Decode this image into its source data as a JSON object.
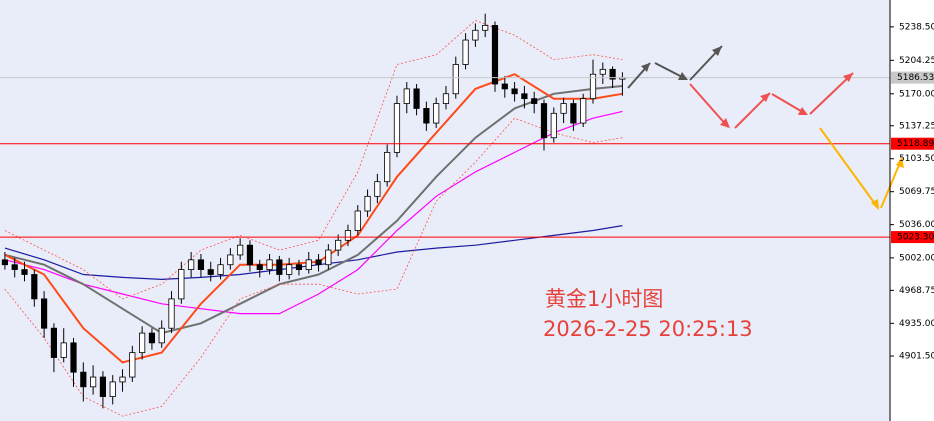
{
  "chart_data": {
    "type": "candlestick",
    "title": "黄金1小时图",
    "subtitle": "2026-2-25 20:25:13",
    "xlim": [
      -0.5,
      90.3
    ],
    "ylim": [
      4835,
      5266
    ],
    "yticks": [
      {
        "value": 5238.5,
        "label": "5238.50"
      },
      5204.25,
      {
        "value": 5170,
        "label": "5170.00"
      },
      5137.25,
      {
        "value": 5103.5,
        "label": "5103.50"
      },
      5069.75,
      {
        "value": 5036,
        "label": "5036.00"
      },
      {
        "value": 5002,
        "label": "5002.00"
      },
      4968.75,
      {
        "value": 4935,
        "label": "4935.00"
      },
      {
        "value": 4901.5,
        "label": "4901.50"
      }
    ],
    "open": [
      5000,
      4995,
      4990,
      4985,
      4960,
      4930,
      4900,
      4915,
      4885,
      4870,
      4880,
      4860,
      4875,
      4880,
      4905,
      4925,
      4915,
      4930,
      4960,
      4990,
      5000,
      4990,
      4985,
      4995,
      5005,
      5015,
      4995,
      4990,
      5000,
      4985,
      4995,
      4990,
      5000,
      4995,
      5010,
      5020,
      5030,
      5050,
      5065,
      5080,
      5110,
      5160,
      5175,
      5155,
      5140,
      5160,
      5170,
      5200,
      5225,
      5235,
      5240,
      5180,
      5175,
      5170,
      5165,
      5160,
      5125,
      5150,
      5160,
      5140,
      5165,
      5190,
      5195,
      5185
    ],
    "high": [
      5008,
      5002,
      4998,
      4990,
      4968,
      4935,
      4930,
      4920,
      4895,
      4892,
      4886,
      4882,
      4888,
      4912,
      4932,
      4930,
      4938,
      4968,
      4998,
      5008,
      5006,
      4998,
      5002,
      5012,
      5022,
      5020,
      5000,
      5006,
      5004,
      5002,
      5000,
      5008,
      5006,
      5016,
      5026,
      5036,
      5056,
      5072,
      5088,
      5118,
      5168,
      5182,
      5180,
      5162,
      5166,
      5178,
      5208,
      5232,
      5242,
      5252,
      5244,
      5188,
      5182,
      5178,
      5172,
      5164,
      5156,
      5166,
      5164,
      5170,
      5205,
      5202,
      5198,
      5192
    ],
    "low": [
      4990,
      4982,
      4978,
      4952,
      4920,
      4885,
      4895,
      4870,
      4855,
      4862,
      4848,
      4852,
      4865,
      4875,
      4898,
      4908,
      4910,
      4925,
      4955,
      4982,
      4982,
      4978,
      4980,
      4990,
      5000,
      4988,
      4982,
      4985,
      4978,
      4980,
      4984,
      4986,
      4988,
      4990,
      5004,
      5014,
      5025,
      5044,
      5058,
      5075,
      5105,
      5150,
      5148,
      5132,
      5135,
      5154,
      5165,
      5195,
      5218,
      5228,
      5172,
      5166,
      5162,
      5155,
      5150,
      5112,
      5120,
      5140,
      5132,
      5136,
      5160,
      5180,
      5176,
      5168
    ],
    "close": [
      4995,
      4990,
      4985,
      4960,
      4930,
      4900,
      4915,
      4885,
      4870,
      4880,
      4860,
      4875,
      4880,
      4905,
      4925,
      4915,
      4930,
      4960,
      4990,
      5000,
      4990,
      4985,
      4995,
      5005,
      5015,
      4995,
      4990,
      5000,
      4985,
      4995,
      4990,
      5000,
      4995,
      5010,
      5020,
      5030,
      5050,
      5065,
      5080,
      5110,
      5160,
      5175,
      5155,
      5140,
      5160,
      5170,
      5200,
      5225,
      5235,
      5240,
      5180,
      5175,
      5170,
      5165,
      5160,
      5125,
      5150,
      5160,
      5140,
      5165,
      5190,
      5195,
      5185,
      5186.53
    ],
    "up_color": "#ffffff",
    "down_color": "#000000",
    "line_x": [
      0,
      4,
      8,
      12,
      16,
      20,
      24,
      28,
      32,
      36,
      40,
      44,
      48,
      52,
      56,
      60,
      63
    ],
    "lines": [
      {
        "color": "#1c1ca0",
        "dash": false,
        "values": [
          5012,
          5000,
          4985,
          4982,
          4980,
          4982,
          4985,
          4990,
          4995,
          5000,
          5008,
          5012,
          5015,
          5020,
          5025,
          5030,
          5035
        ]
      },
      {
        "color": "#ff00ff",
        "dash": false,
        "values": [
          5000,
          4990,
          4975,
          4965,
          4955,
          4950,
          4945,
          4945,
          4965,
          4990,
          5030,
          5065,
          5090,
          5110,
          5130,
          5145,
          5152
        ]
      },
      {
        "color": "#707070",
        "dash": false,
        "values": [
          5005,
          4995,
          4975,
          4950,
          4925,
          4935,
          4955,
          4975,
          4985,
          5005,
          5040,
          5085,
          5125,
          5155,
          5170,
          5175,
          5178
        ]
      },
      {
        "color": "#ff4a1a",
        "dash": false,
        "values": [
          5005,
          4985,
          4930,
          4895,
          4905,
          4955,
          4995,
          4995,
          4998,
          5025,
          5085,
          5130,
          5175,
          5190,
          5165,
          5165,
          5170
        ]
      },
      {
        "color": "#ff5050",
        "dash": true,
        "values": [
          5030,
          5010,
          4990,
          4960,
          4975,
          5010,
          5025,
          5010,
          5020,
          5090,
          5200,
          5210,
          5245,
          5230,
          5205,
          5210,
          5205
        ]
      },
      {
        "color": "#ff5050",
        "dash": true,
        "values": [
          4970,
          4920,
          4860,
          4840,
          4850,
          4900,
          4960,
          4975,
          4975,
          4965,
          4970,
          5060,
          5100,
          5145,
          5130,
          5120,
          5125
        ]
      }
    ],
    "hlines": [
      {
        "value": 5186.53,
        "label": "5186.53",
        "color": "#c8c8c8"
      },
      {
        "value": 5118.89,
        "label": "5118.89",
        "color": "#ff0000"
      },
      {
        "value": 5023.3,
        "label": "5023.30",
        "color": "#ff0000"
      }
    ]
  }
}
